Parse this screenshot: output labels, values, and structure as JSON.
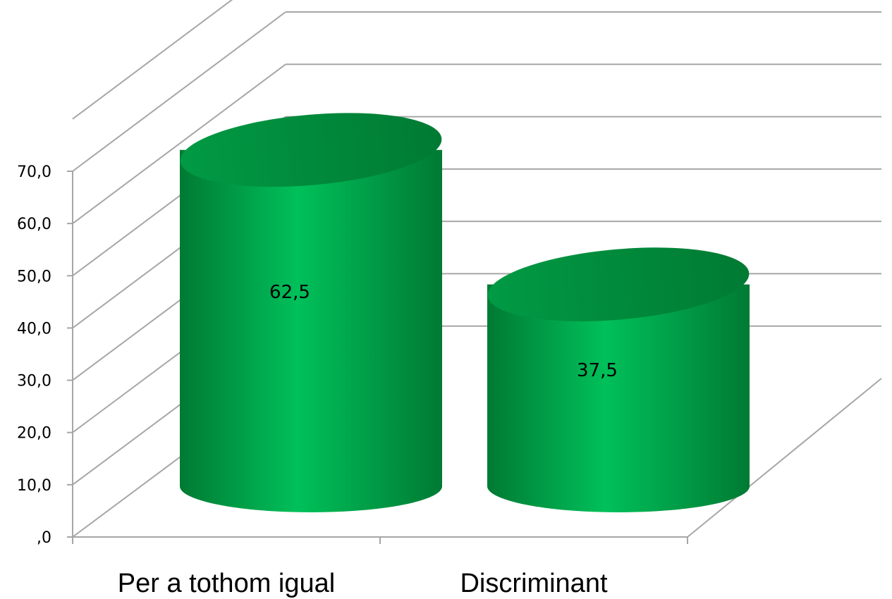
{
  "chart_data": {
    "type": "bar",
    "style": "3d-cylinder",
    "categories": [
      "Per a tothom igual",
      "Discriminant"
    ],
    "values": [
      62.5,
      37.5
    ],
    "value_labels": [
      "62,5",
      "37,5"
    ],
    "y_ticks": [
      ",0",
      "10,0",
      "20,0",
      "30,0",
      "40,0",
      "50,0",
      "60,0",
      "70,0"
    ],
    "ylim": [
      0,
      70
    ],
    "grid": true,
    "legend": "none",
    "title": "",
    "xlabel": "",
    "ylabel": "",
    "colors": {
      "bar_dark": "#007a33",
      "bar_light": "#00c05a",
      "bar_top": "#019a44",
      "grid": "#a6a6a6"
    }
  }
}
